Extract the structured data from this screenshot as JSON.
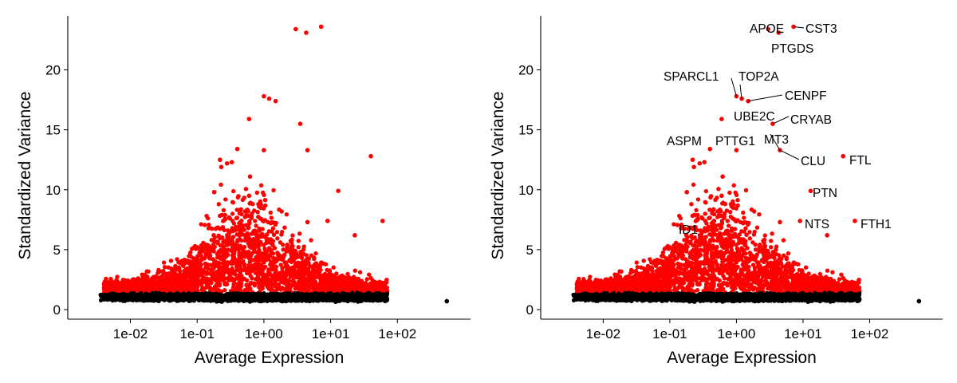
{
  "chart_data": [
    {
      "type": "scatter",
      "xlabel": "Average Expression",
      "ylabel": "Standardized Variance",
      "xscale": "log10",
      "xlim": [
        0.002,
        1000
      ],
      "ylim": [
        -0.8,
        24.5
      ],
      "x_ticks": [
        {
          "value": 0.01,
          "label": "1e-02"
        },
        {
          "value": 0.1,
          "label": "1e-01"
        },
        {
          "value": 1,
          "label": "1e+00"
        },
        {
          "value": 10,
          "label": "1e+01"
        },
        {
          "value": 100,
          "label": "1e+02"
        }
      ],
      "y_ticks": [
        {
          "value": 0,
          "label": "0"
        },
        {
          "value": 5,
          "label": "5"
        },
        {
          "value": 10,
          "label": "10"
        },
        {
          "value": 15,
          "label": "15"
        },
        {
          "value": 20,
          "label": "20"
        }
      ],
      "grid": false,
      "colors": {
        "variable": "#ff0000",
        "non_variable": "#000000"
      },
      "series": [
        {
          "color": "#ff0000",
          "points": [
            [
              3.0,
              23.4
            ],
            [
              4.3,
              23.1
            ],
            [
              7.2,
              23.6
            ],
            [
              1.0,
              17.8
            ],
            [
              1.2,
              17.6
            ],
            [
              1.5,
              17.4
            ],
            [
              0.6,
              15.9
            ],
            [
              3.5,
              15.5
            ],
            [
              0.4,
              13.4
            ],
            [
              1.0,
              13.3
            ],
            [
              4.5,
              13.3
            ],
            [
              40,
              12.8
            ],
            [
              0.22,
              12.5
            ],
            [
              0.33,
              12.3
            ],
            [
              0.28,
              12.2
            ],
            [
              0.23,
              11.9
            ],
            [
              0.62,
              11.1
            ],
            [
              13,
              9.9
            ],
            [
              0.18,
              9.8
            ],
            [
              0.6,
              9.5
            ],
            [
              60,
              7.4
            ],
            [
              9,
              7.4
            ],
            [
              4.5,
              7.3
            ],
            [
              23,
              6.2
            ]
          ]
        },
        {
          "color": "#000000",
          "points": [
            [
              550,
              0.7
            ]
          ]
        }
      ]
    },
    {
      "type": "scatter",
      "xlabel": "Average Expression",
      "ylabel": "Standardized Variance",
      "xscale": "log10",
      "xlim": [
        0.002,
        1000
      ],
      "ylim": [
        -0.8,
        24.5
      ],
      "x_ticks": [
        {
          "value": 0.01,
          "label": "1e-02"
        },
        {
          "value": 0.1,
          "label": "1e-01"
        },
        {
          "value": 1,
          "label": "1e+00"
        },
        {
          "value": 10,
          "label": "1e+01"
        },
        {
          "value": 100,
          "label": "1e+02"
        }
      ],
      "y_ticks": [
        {
          "value": 0,
          "label": "0"
        },
        {
          "value": 5,
          "label": "5"
        },
        {
          "value": 10,
          "label": "10"
        },
        {
          "value": 15,
          "label": "15"
        },
        {
          "value": 20,
          "label": "20"
        }
      ],
      "grid": false,
      "colors": {
        "variable": "#ff0000",
        "non_variable": "#000000"
      },
      "series": [
        {
          "color": "#ff0000",
          "points": [
            [
              3.0,
              23.4
            ],
            [
              4.3,
              23.1
            ],
            [
              7.2,
              23.6
            ],
            [
              1.0,
              17.8
            ],
            [
              1.2,
              17.6
            ],
            [
              1.5,
              17.4
            ],
            [
              0.6,
              15.9
            ],
            [
              3.5,
              15.5
            ],
            [
              0.4,
              13.4
            ],
            [
              1.0,
              13.3
            ],
            [
              4.5,
              13.3
            ],
            [
              40,
              12.8
            ],
            [
              0.22,
              12.5
            ],
            [
              0.33,
              12.3
            ],
            [
              0.28,
              12.2
            ],
            [
              0.23,
              11.9
            ],
            [
              0.62,
              11.1
            ],
            [
              13,
              9.9
            ],
            [
              0.18,
              9.8
            ],
            [
              0.6,
              9.5
            ],
            [
              60,
              7.4
            ],
            [
              9,
              7.4
            ],
            [
              4.5,
              7.3
            ],
            [
              23,
              6.2
            ]
          ]
        },
        {
          "color": "#000000",
          "points": [
            [
              550,
              0.7
            ]
          ]
        }
      ],
      "annotations": [
        {
          "text": "APOE",
          "x": 3.0,
          "y": 23.4
        },
        {
          "text": "CST3",
          "x": 7.2,
          "y": 23.6
        },
        {
          "text": "PTGDS",
          "x": 4.3,
          "y": 23.1
        },
        {
          "text": "SPARCL1",
          "x": 1.0,
          "y": 17.8
        },
        {
          "text": "TOP2A",
          "x": 1.2,
          "y": 17.6
        },
        {
          "text": "CENPF",
          "x": 1.5,
          "y": 17.4
        },
        {
          "text": "UBE2C",
          "x": 0.6,
          "y": 15.9
        },
        {
          "text": "CRYAB",
          "x": 3.5,
          "y": 15.5
        },
        {
          "text": "ASPM",
          "x": 0.4,
          "y": 13.4
        },
        {
          "text": "PTTG1",
          "x": 1.0,
          "y": 13.3
        },
        {
          "text": "MT3",
          "x": 4.5,
          "y": 13.3
        },
        {
          "text": "CLU",
          "x": 4.5,
          "y": 13.3
        },
        {
          "text": "FTL",
          "x": 40,
          "y": 12.8
        },
        {
          "text": "PTN",
          "x": 13,
          "y": 9.9
        },
        {
          "text": "NTS",
          "x": 9,
          "y": 7.4
        },
        {
          "text": "FTH1",
          "x": 60,
          "y": 7.4
        },
        {
          "text": "ID1",
          "x": 0.45,
          "y": 6.9
        }
      ]
    }
  ]
}
